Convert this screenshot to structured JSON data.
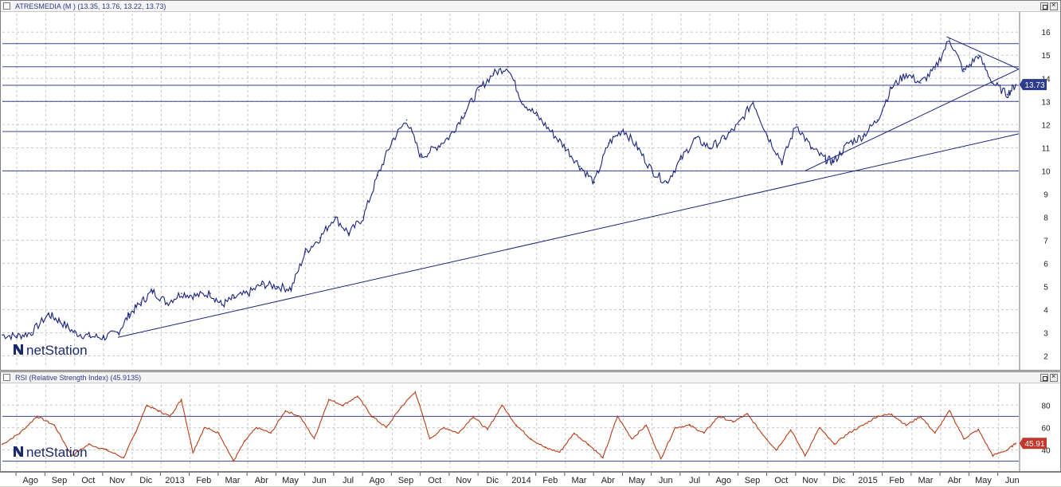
{
  "price_pane": {
    "title": "ATRESMEDIA (M ) (13.35, 13.76, 13.22, 13.73)",
    "last_value": "13.73"
  },
  "rsi_pane": {
    "title": "RSI (Relative Strength Index) (45.9135)",
    "last_value": "45.91"
  },
  "watermark": "netStation",
  "colors": {
    "price_line": "#1a237e",
    "rsi_line": "#b83c14",
    "grid": "#c8c8c8",
    "level_line": "#1a237e",
    "badge": "#2d3c8e",
    "rsi_badge": "#c0392b"
  },
  "chart_data": [
    {
      "type": "line",
      "title": "ATRESMEDIA (M ) (13.35, 13.76, 13.22, 13.73)",
      "xlabel": "",
      "ylabel": "",
      "ylim": [
        1.5,
        16.8
      ],
      "y_ticks": [
        "2",
        "3",
        "4",
        "5",
        "6",
        "7",
        "8",
        "9",
        "10",
        "11",
        "12",
        "13",
        "14",
        "15",
        "16"
      ],
      "x_ticks": [
        "Ago",
        "Sep",
        "Oct",
        "Nov",
        "Dic",
        "2013",
        "Feb",
        "Mar",
        "Abr",
        "May",
        "Jun",
        "Jul",
        "Ago",
        "Sep",
        "Oct",
        "Nov",
        "Dic",
        "2014",
        "Feb",
        "Mar",
        "Abr",
        "May",
        "Jun",
        "Jul",
        "Ago",
        "Sep",
        "Oct",
        "Nov",
        "Dic",
        "2015",
        "Feb",
        "Mar",
        "Abr",
        "May",
        "Jun"
      ],
      "x_range": [
        0,
        35.2
      ],
      "grid": true,
      "series": [
        {
          "x": [
            0,
            0.5,
            1,
            1.6,
            2,
            2.5,
            3,
            3.5,
            4,
            4.4,
            4.8,
            5.2,
            5.7,
            6.2,
            6.7,
            7.2,
            7.6,
            8,
            8.5,
            9,
            9.5,
            10,
            10.5,
            11,
            11.5,
            12,
            12.5,
            13,
            13.5,
            14,
            14.5,
            15,
            15.5,
            16,
            16.5,
            17,
            17.5,
            18,
            18.5,
            19,
            19.5,
            20,
            20.5,
            21,
            21.5,
            22,
            22.5,
            23,
            23.5,
            24,
            24.5,
            25,
            25.5,
            26,
            26.5,
            27,
            27.5,
            28,
            28.5,
            28.8,
            29.3,
            29.8,
            30.3,
            30.8,
            31.3,
            31.8,
            32.3,
            32.8,
            33.3,
            33.8,
            34.3,
            34.8,
            35.1
          ],
          "values": [
            2.9,
            2.85,
            3.0,
            3.8,
            3.5,
            3.0,
            2.85,
            2.8,
            3.0,
            3.8,
            4.3,
            4.8,
            4.3,
            4.7,
            4.6,
            4.7,
            4.2,
            4.5,
            4.7,
            5.1,
            5.0,
            4.9,
            6.5,
            7.1,
            8.0,
            7.3,
            8.0,
            9.8,
            11.3,
            12.2,
            10.6,
            11.0,
            11.5,
            12.5,
            13.5,
            14.2,
            14.5,
            13.0,
            12.4,
            11.7,
            11.0,
            10.2,
            9.5,
            11.2,
            11.8,
            11.0,
            10.0,
            9.5,
            10.5,
            11.4,
            11.0,
            11.4,
            12.0,
            13.0,
            11.5,
            10.4,
            12.0,
            11.0,
            10.5,
            10.4,
            11.2,
            11.5,
            12.2,
            13.6,
            14.2,
            13.8,
            14.4,
            15.7,
            14.3,
            15.0,
            13.8,
            13.3,
            13.73
          ]
        }
      ],
      "horizontal_lines": [
        15.5,
        14.5,
        13.7,
        13.0,
        11.7,
        10.0
      ],
      "trend_lines": [
        {
          "from": [
            4.0,
            2.8
          ],
          "to": [
            35.2,
            11.6
          ]
        },
        {
          "from": [
            27.8,
            10.0
          ],
          "to": [
            35.2,
            14.4
          ]
        },
        {
          "from": [
            32.7,
            15.8
          ],
          "to": [
            35.2,
            14.4
          ]
        }
      ]
    },
    {
      "type": "line",
      "title": "RSI (Relative Strength Index) (45.9135)",
      "ylim": [
        24,
        98
      ],
      "y_ticks": [
        "40",
        "60",
        "80"
      ],
      "x_range": [
        0,
        35.2
      ],
      "grid": true,
      "series": [
        {
          "x": [
            0,
            0.6,
            1.2,
            1.8,
            2.4,
            3,
            3.6,
            4.2,
            4.6,
            5,
            5.4,
            5.8,
            6.2,
            6.6,
            7,
            7.5,
            8,
            8.4,
            8.8,
            9.3,
            9.8,
            10.3,
            10.8,
            11.3,
            11.8,
            12.3,
            12.8,
            13.3,
            13.8,
            14.3,
            14.8,
            15.3,
            15.8,
            16.3,
            16.8,
            17.3,
            17.8,
            18.3,
            18.8,
            19.3,
            19.8,
            20.3,
            20.8,
            21.3,
            21.8,
            22.3,
            22.8,
            23.3,
            23.8,
            24.3,
            24.8,
            25.3,
            25.8,
            26.3,
            26.8,
            27.3,
            27.8,
            28.3,
            28.8,
            29.3,
            29.8,
            30.3,
            30.8,
            31.3,
            31.8,
            32.3,
            32.8,
            33.3,
            33.8,
            34.3,
            34.8,
            35.1
          ],
          "values": [
            45,
            55,
            70,
            62,
            35,
            45,
            40,
            33,
            55,
            80,
            75,
            70,
            85,
            38,
            60,
            55,
            30,
            48,
            60,
            55,
            75,
            70,
            50,
            85,
            80,
            88,
            70,
            60,
            78,
            92,
            50,
            60,
            55,
            70,
            58,
            80,
            62,
            50,
            42,
            38,
            55,
            45,
            33,
            70,
            50,
            62,
            32,
            60,
            62,
            55,
            70,
            65,
            72,
            55,
            40,
            58,
            35,
            60,
            45,
            55,
            62,
            70,
            72,
            62,
            70,
            55,
            75,
            50,
            58,
            35,
            40,
            45.91
          ]
        }
      ],
      "horizontal_lines": [
        70,
        30
      ]
    }
  ]
}
